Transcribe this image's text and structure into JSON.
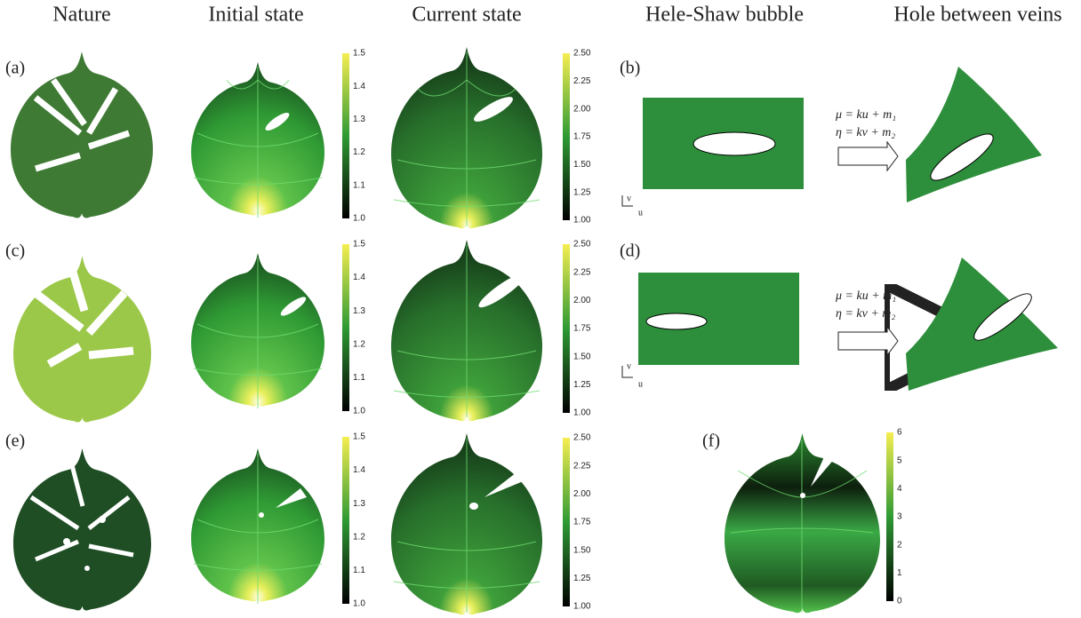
{
  "headers": [
    "Nature",
    "Initial state",
    "Current state",
    "Hele-Shaw bubble",
    "Hole between veins"
  ],
  "panel_labels": [
    "(a)",
    "(b)",
    "(c)",
    "(d)",
    "(e)",
    "(f)"
  ],
  "colorbars": {
    "initial": [
      "1.5",
      "1.4",
      "1.3",
      "1.2",
      "1.1",
      "1.0"
    ],
    "current": [
      "2.50",
      "2.25",
      "2.00",
      "1.75",
      "1.50",
      "1.25",
      "1.00"
    ],
    "f": [
      "6",
      "5",
      "4",
      "3",
      "2",
      "1",
      "0"
    ]
  },
  "equations": {
    "mu": "μ = ku + m₁",
    "eta": "η = kv + m₂"
  },
  "axes": {
    "v": "v",
    "u": "u"
  }
}
